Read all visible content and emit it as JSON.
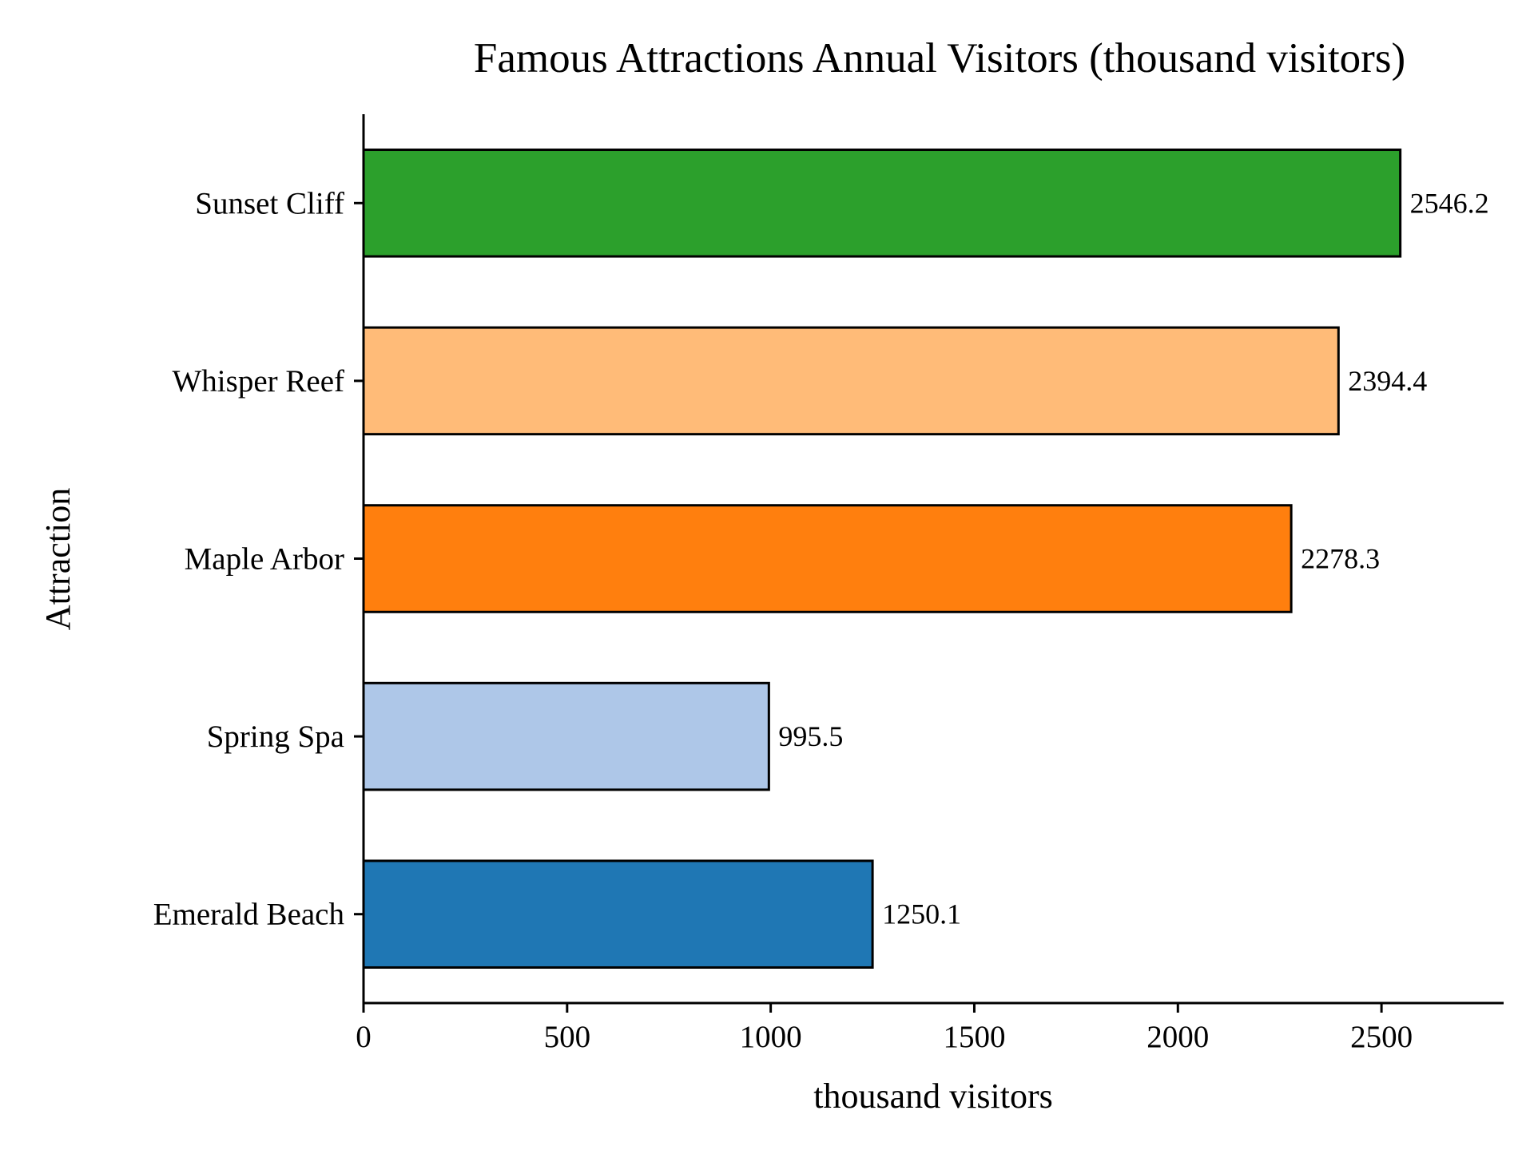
{
  "chart_data": {
    "type": "bar",
    "orientation": "horizontal",
    "title": "Famous Attractions Annual Visitors (thousand visitors)",
    "xlabel": "thousand visitors",
    "ylabel": "Attraction",
    "categories": [
      "Emerald Beach",
      "Spring Spa",
      "Maple Arbor",
      "Whisper Reef",
      "Sunset Cliff"
    ],
    "values": [
      1250.1,
      995.5,
      2278.3,
      2394.4,
      2546.2
    ],
    "value_labels": [
      "1250.1",
      "995.5",
      "2278.3",
      "2394.4",
      "2546.2"
    ],
    "colors": [
      "#1f77b4",
      "#aec7e8",
      "#ff7f0e",
      "#ffbb78",
      "#2ca02c"
    ],
    "xlim": [
      0,
      2800
    ],
    "xticks": [
      0,
      500,
      1000,
      1500,
      2000,
      2500
    ],
    "xtick_labels": [
      "0",
      "500",
      "1000",
      "1500",
      "2000",
      "2500"
    ],
    "grid": false,
    "legend": "none"
  }
}
